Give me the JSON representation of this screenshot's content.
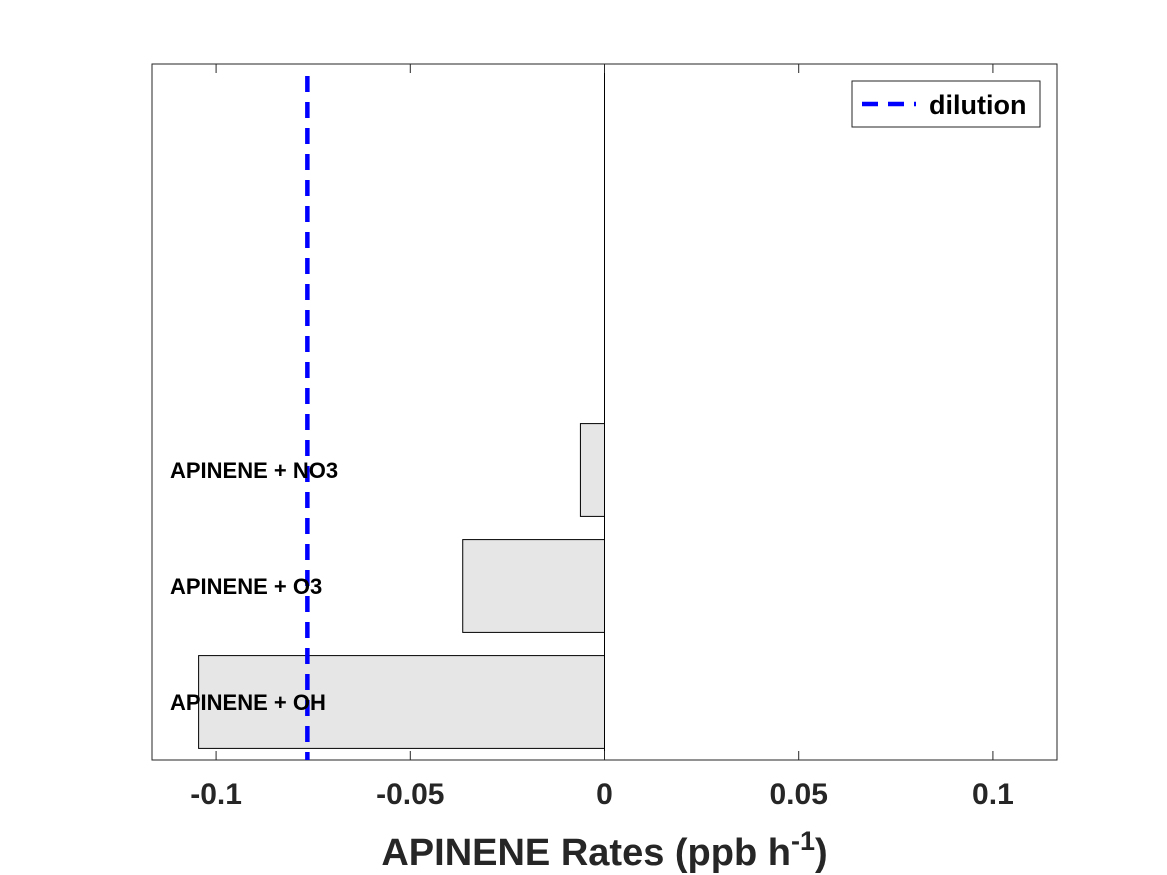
{
  "chart_data": {
    "type": "bar",
    "orientation": "horizontal",
    "categories": [
      "APINENE + OH",
      "APINENE + O3",
      "APINENE + NO3"
    ],
    "values": [
      -0.1045,
      -0.0365,
      -0.0062
    ],
    "xlabel": {
      "main": "APINENE Rates (ppb h",
      "superscript": "-1",
      "close": ")"
    },
    "ylabel": "",
    "xlim": [
      -0.1165,
      0.1165
    ],
    "xticks": [
      -0.1,
      -0.05,
      0,
      0.05,
      0.1
    ],
    "xtick_labels": [
      "-0.1",
      "-0.05",
      "0",
      "0.05",
      "0.1"
    ],
    "ylim": [
      0.5,
      6.5
    ],
    "reference_lines": [
      {
        "name": "dilution",
        "x": -0.0765,
        "style": "dashed",
        "color": "#0000ff"
      }
    ],
    "legend": {
      "position": "top-right",
      "entries": [
        "dilution"
      ]
    },
    "bar_color": "#e6e6e6",
    "bar_edge_color": "#000000",
    "grid": false
  }
}
